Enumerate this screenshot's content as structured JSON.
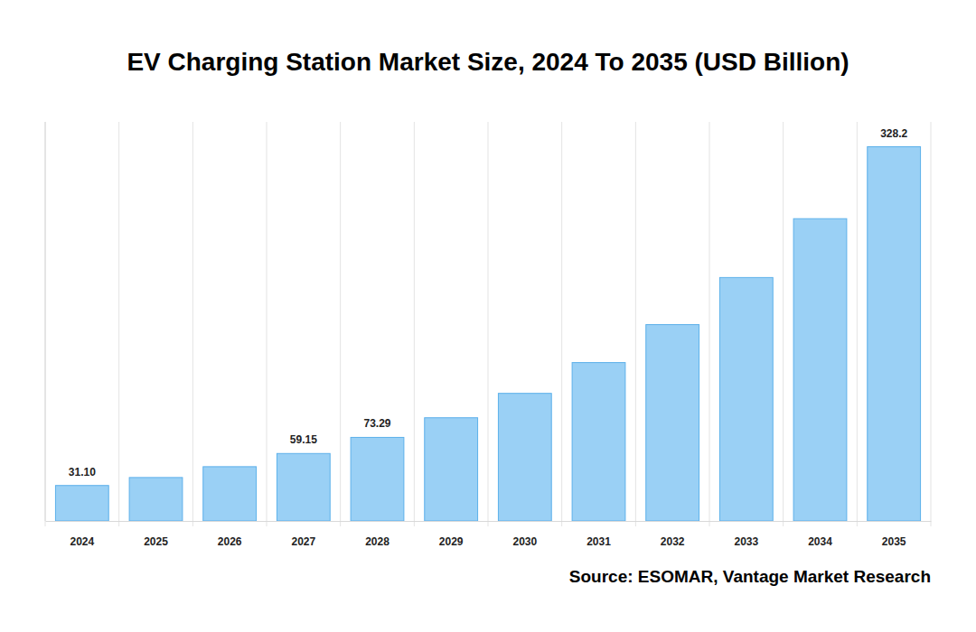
{
  "chart_data": {
    "type": "bar",
    "title": "EV Charging Station Market Size, 2024 To 2035 (USD Billion)",
    "categories": [
      "2024",
      "2025",
      "2026",
      "2027",
      "2028",
      "2029",
      "2030",
      "2031",
      "2032",
      "2033",
      "2034",
      "2035"
    ],
    "values": [
      31.1,
      38.1,
      47.6,
      59.15,
      73.29,
      90.5,
      111.9,
      138.9,
      172.2,
      213.5,
      265.1,
      328.2
    ],
    "value_labels": [
      "31.10",
      null,
      null,
      "59.15",
      "73.29",
      null,
      null,
      null,
      null,
      null,
      null,
      "328.2"
    ],
    "data_labels": true,
    "color": "#9ad0f5",
    "ylim": [
      0,
      350
    ],
    "yticks": [],
    "grid": true,
    "tick_labels": "x",
    "source": "Source: ESOMAR, Vantage Market Research"
  }
}
